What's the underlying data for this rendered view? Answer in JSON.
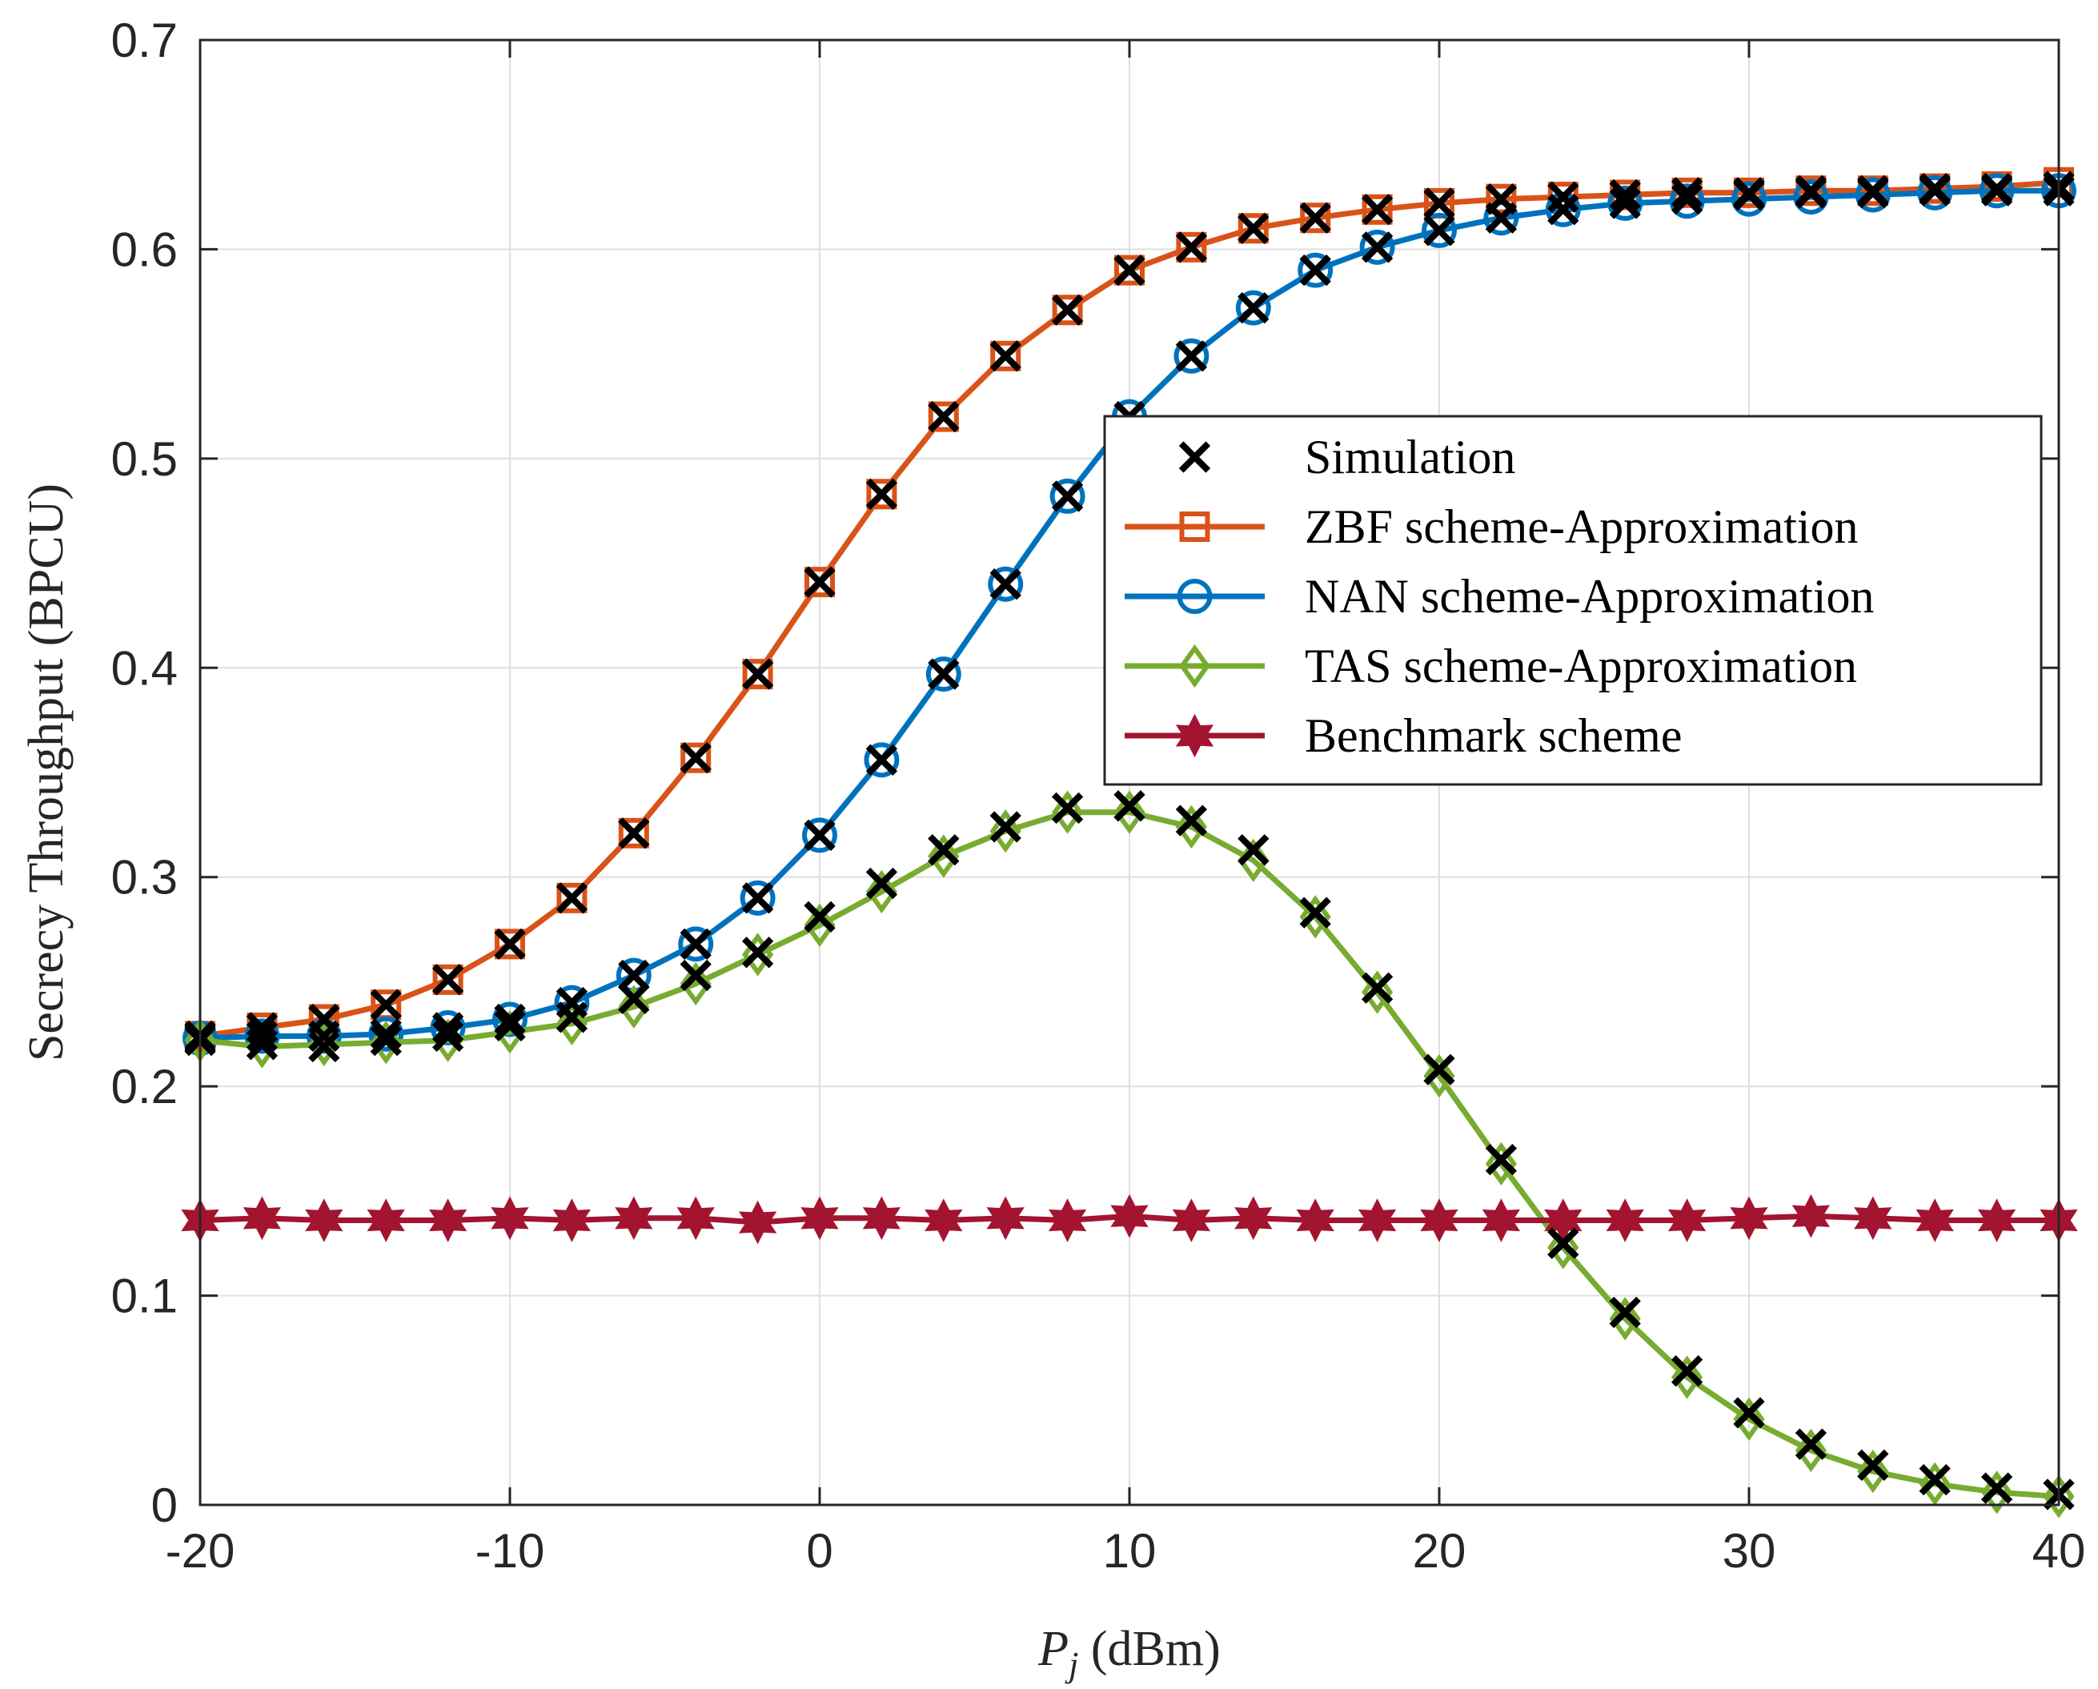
{
  "chart_data": {
    "type": "line",
    "title": "",
    "xlabel_var": "P",
    "xlabel_sub": "j",
    "xlabel_unit": " (dBm)",
    "ylabel": "Secrecy Throughput (BPCU)",
    "xlim": [
      -20,
      40
    ],
    "ylim": [
      0,
      0.7
    ],
    "xticks": [
      -20,
      -10,
      0,
      10,
      20,
      30,
      40
    ],
    "xtick_labels": [
      "-20",
      "-10",
      "0",
      "10",
      "20",
      "30",
      "40"
    ],
    "yticks": [
      0,
      0.1,
      0.2,
      0.3,
      0.4,
      0.5,
      0.6,
      0.7
    ],
    "ytick_labels": [
      "0",
      "0.1",
      "0.2",
      "0.3",
      "0.4",
      "0.5",
      "0.6",
      "0.7"
    ],
    "grid": true,
    "legend_position": "upper-right",
    "x": [
      -20,
      -18,
      -16,
      -14,
      -12,
      -10,
      -8,
      -6,
      -4,
      -2,
      0,
      2,
      4,
      6,
      8,
      10,
      12,
      14,
      16,
      18,
      20,
      22,
      24,
      26,
      28,
      30,
      32,
      34,
      36,
      38,
      40
    ],
    "series": [
      {
        "name": "Simulation",
        "marker": "x",
        "line": false,
        "color": "#000000",
        "groups": [
          [
            0.224,
            0.228,
            0.232,
            0.239,
            0.251,
            0.268,
            0.29,
            0.321,
            0.357,
            0.397,
            0.441,
            0.483,
            0.52,
            0.549,
            0.571,
            0.59,
            0.601,
            0.61,
            0.615,
            0.619,
            0.622,
            0.624,
            0.625,
            0.626,
            0.627,
            0.627,
            0.628,
            0.628,
            0.629,
            0.629,
            0.63
          ],
          [
            0.223,
            0.224,
            0.224,
            0.225,
            0.228,
            0.232,
            0.24,
            0.253,
            0.268,
            0.29,
            0.32,
            0.356,
            0.397,
            0.44,
            0.482,
            0.52,
            0.549,
            0.572,
            0.59,
            0.601,
            0.609,
            0.615,
            0.619,
            0.622,
            0.624,
            0.626,
            0.627,
            0.627,
            0.628,
            0.628,
            0.628
          ],
          [
            0.222,
            0.22,
            0.219,
            0.222,
            0.224,
            0.229,
            0.233,
            0.242,
            0.253,
            0.264,
            0.281,
            0.297,
            0.313,
            0.324,
            0.333,
            0.334,
            0.327,
            0.313,
            0.283,
            0.247,
            0.208,
            0.165,
            0.125,
            0.092,
            0.064,
            0.044,
            0.029,
            0.019,
            0.012,
            0.008,
            0.005
          ]
        ]
      },
      {
        "name": "ZBF scheme-Approximation",
        "marker": "square",
        "line": true,
        "color": "#D95319",
        "values": [
          0.224,
          0.228,
          0.232,
          0.239,
          0.251,
          0.268,
          0.29,
          0.321,
          0.357,
          0.397,
          0.441,
          0.483,
          0.52,
          0.549,
          0.571,
          0.59,
          0.601,
          0.61,
          0.615,
          0.619,
          0.622,
          0.624,
          0.625,
          0.626,
          0.627,
          0.627,
          0.628,
          0.628,
          0.629,
          0.63,
          0.632
        ]
      },
      {
        "name": "NAN scheme-Approximation",
        "marker": "circle",
        "line": true,
        "color": "#0072BD",
        "values": [
          0.223,
          0.224,
          0.224,
          0.225,
          0.228,
          0.232,
          0.24,
          0.253,
          0.268,
          0.29,
          0.32,
          0.356,
          0.397,
          0.44,
          0.482,
          0.52,
          0.549,
          0.572,
          0.59,
          0.601,
          0.609,
          0.615,
          0.619,
          0.622,
          0.623,
          0.624,
          0.625,
          0.626,
          0.627,
          0.628,
          0.628
        ]
      },
      {
        "name": "TAS scheme-Approximation",
        "marker": "diamond",
        "line": true,
        "color": "#77AC30",
        "values": [
          0.222,
          0.219,
          0.22,
          0.221,
          0.222,
          0.226,
          0.23,
          0.238,
          0.249,
          0.263,
          0.277,
          0.293,
          0.31,
          0.322,
          0.331,
          0.331,
          0.324,
          0.308,
          0.281,
          0.245,
          0.205,
          0.163,
          0.123,
          0.089,
          0.061,
          0.041,
          0.026,
          0.016,
          0.01,
          0.006,
          0.004
        ]
      },
      {
        "name": "Benchmark scheme",
        "marker": "hexagram",
        "line": true,
        "color": "#A2142F",
        "values": [
          0.136,
          0.137,
          0.136,
          0.136,
          0.136,
          0.137,
          0.136,
          0.137,
          0.137,
          0.135,
          0.137,
          0.137,
          0.136,
          0.137,
          0.136,
          0.138,
          0.136,
          0.137,
          0.136,
          0.136,
          0.136,
          0.136,
          0.136,
          0.136,
          0.136,
          0.137,
          0.138,
          0.137,
          0.136,
          0.136,
          0.136
        ]
      }
    ]
  }
}
